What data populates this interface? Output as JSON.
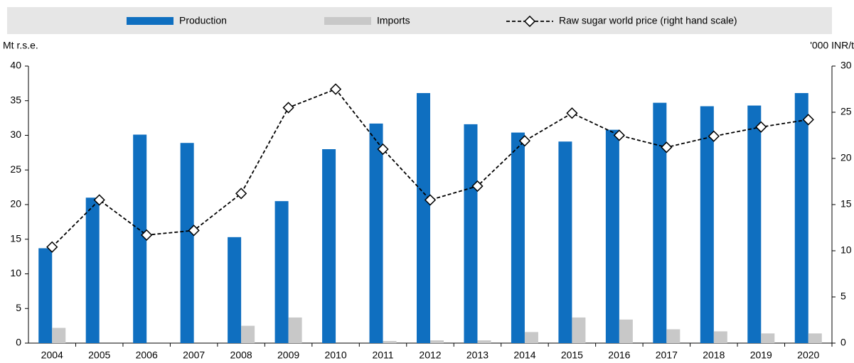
{
  "chart_data": {
    "type": "bar",
    "legend": [
      "Production",
      "Imports",
      "Raw sugar world price (right hand scale)"
    ],
    "ylabel": "Mt r.s.e.",
    "y2label": "'000 INR/t",
    "categories": [
      "2004",
      "2005",
      "2006",
      "2007",
      "2008",
      "2009",
      "2010",
      "2011",
      "2012",
      "2013",
      "2014",
      "2015",
      "2016",
      "2017",
      "2018",
      "2019",
      "2020"
    ],
    "series": [
      {
        "name": "Production",
        "type": "bar",
        "color": "#0f6fc0",
        "values": [
          13.7,
          21,
          30.1,
          28.9,
          15.3,
          20.5,
          28,
          31.7,
          36.1,
          31.6,
          30.4,
          29.1,
          30.8,
          34.7,
          34.2,
          34.3,
          36.1
        ]
      },
      {
        "name": "Imports",
        "type": "bar",
        "color": "#c8c8c8",
        "values": [
          2.2,
          0,
          0,
          0,
          2.5,
          3.7,
          0,
          0.3,
          0.4,
          0.4,
          1.6,
          3.7,
          3.4,
          2,
          1.7,
          1.4,
          1.4
        ]
      },
      {
        "name": "Raw sugar world price (right hand scale)",
        "type": "line",
        "axis": "y2",
        "color": "#000000",
        "values": [
          10.4,
          15.5,
          11.7,
          12.2,
          16.2,
          25.5,
          27.5,
          21.0,
          15.5,
          17.0,
          21.9,
          24.9,
          22.5,
          21.2,
          22.4,
          23.4,
          24.2
        ]
      }
    ],
    "ylim": [
      0,
      40
    ],
    "yticks": [
      0,
      5,
      10,
      15,
      20,
      25,
      30,
      35,
      40
    ],
    "y2lim": [
      0,
      30
    ],
    "y2ticks": [
      0,
      5,
      10,
      15,
      20,
      25,
      30
    ],
    "grid": false
  }
}
